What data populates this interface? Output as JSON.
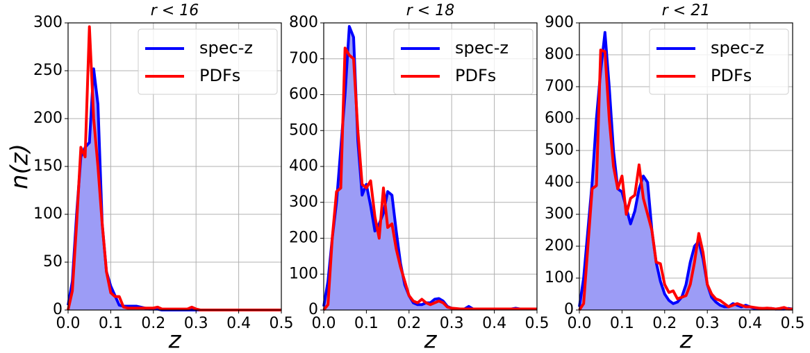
{
  "chart_data": [
    {
      "type": "line",
      "title": "r < 16",
      "xlabel": "z",
      "ylabel": "n(z)",
      "grid": true,
      "legend": "upper right",
      "x": [
        0,
        0.01,
        0.02,
        0.03,
        0.04,
        0.05,
        0.06,
        0.07,
        0.08,
        0.09,
        0.1,
        0.11,
        0.12,
        0.13,
        0.14,
        0.15,
        0.16,
        0.17,
        0.18,
        0.19,
        0.2,
        0.21,
        0.22,
        0.23,
        0.24,
        0.25,
        0.26,
        0.27,
        0.28,
        0.29,
        0.3,
        0.31,
        0.32,
        0.33,
        0.34,
        0.35,
        0.36,
        0.37,
        0.38,
        0.39,
        0.4,
        0.41,
        0.42,
        0.43,
        0.44,
        0.45,
        0.46,
        0.47,
        0.48,
        0.49,
        0.5
      ],
      "xlim": [
        0,
        0.5
      ],
      "xticks": [
        {
          "value": 0,
          "label": "0.0"
        },
        0.1,
        0.2,
        0.3,
        0.4,
        0.5
      ],
      "ylim": [
        0,
        300
      ],
      "yticks": [
        0,
        50,
        100,
        150,
        200,
        250,
        300
      ],
      "series": [
        {
          "name": "spec-z",
          "color": "#0000ff",
          "fill_color": "#9c9cf6",
          "values": [
            5,
            30,
            100,
            160,
            170,
            175,
            252,
            215,
            90,
            40,
            25,
            15,
            5,
            4,
            4,
            4,
            4,
            3,
            2,
            1,
            1,
            1,
            0,
            0,
            0,
            0,
            0,
            0,
            0,
            0,
            0,
            0,
            0,
            0,
            0,
            0,
            0,
            0,
            0,
            0,
            0,
            0,
            0,
            0,
            0,
            0,
            0,
            0,
            0,
            0,
            0
          ]
        },
        {
          "name": "PDFs",
          "color": "#ff0000",
          "values": [
            0,
            20,
            90,
            170,
            160,
            296,
            200,
            150,
            90,
            40,
            18,
            14,
            14,
            3,
            2,
            2,
            2,
            2,
            2,
            2,
            2,
            3,
            1,
            1,
            1,
            1,
            1,
            1,
            1,
            3,
            1,
            0,
            0,
            0,
            0,
            0,
            0,
            0,
            0,
            0,
            0,
            0,
            0,
            0,
            0,
            0,
            0,
            0,
            0,
            0,
            0
          ]
        }
      ]
    },
    {
      "type": "line",
      "title": "r < 18",
      "xlabel": "z",
      "grid": true,
      "legend": "upper right",
      "x": [
        0,
        0.01,
        0.02,
        0.03,
        0.04,
        0.05,
        0.06,
        0.07,
        0.08,
        0.09,
        0.1,
        0.11,
        0.12,
        0.13,
        0.14,
        0.15,
        0.16,
        0.17,
        0.18,
        0.19,
        0.2,
        0.21,
        0.22,
        0.23,
        0.24,
        0.25,
        0.26,
        0.27,
        0.28,
        0.29,
        0.3,
        0.31,
        0.32,
        0.33,
        0.34,
        0.35,
        0.36,
        0.37,
        0.38,
        0.39,
        0.4,
        0.41,
        0.42,
        0.43,
        0.44,
        0.45,
        0.46,
        0.47,
        0.48,
        0.49,
        0.5
      ],
      "xlim": [
        0,
        0.5
      ],
      "xticks": [
        {
          "value": 0,
          "label": "0.0"
        },
        0.1,
        0.2,
        0.3,
        0.4,
        0.5
      ],
      "ylim": [
        0,
        800
      ],
      "yticks": [
        0,
        100,
        200,
        300,
        400,
        500,
        600,
        700,
        800
      ],
      "series": [
        {
          "name": "spec-z",
          "color": "#0000ff",
          "fill_color": "#9c9cf6",
          "values": [
            10,
            80,
            200,
            300,
            450,
            600,
            790,
            760,
            470,
            320,
            350,
            290,
            220,
            240,
            270,
            330,
            320,
            220,
            130,
            70,
            40,
            20,
            15,
            15,
            20,
            20,
            30,
            32,
            25,
            10,
            5,
            3,
            3,
            3,
            10,
            3,
            3,
            3,
            3,
            3,
            3,
            3,
            3,
            3,
            3,
            5,
            3,
            3,
            3,
            3,
            3
          ]
        },
        {
          "name": "PDFs",
          "color": "#ff0000",
          "values": [
            0,
            15,
            200,
            330,
            340,
            730,
            710,
            700,
            500,
            350,
            340,
            360,
            260,
            200,
            340,
            230,
            240,
            170,
            120,
            80,
            40,
            25,
            20,
            30,
            20,
            15,
            20,
            25,
            20,
            8,
            5,
            4,
            3,
            3,
            3,
            3,
            3,
            3,
            3,
            3,
            3,
            3,
            3,
            3,
            3,
            3,
            3,
            3,
            3,
            3,
            3
          ]
        }
      ]
    },
    {
      "type": "line",
      "title": "r < 21",
      "xlabel": "z",
      "grid": true,
      "legend": "upper right",
      "x": [
        0,
        0.01,
        0.02,
        0.03,
        0.04,
        0.05,
        0.06,
        0.07,
        0.08,
        0.09,
        0.1,
        0.11,
        0.12,
        0.13,
        0.14,
        0.15,
        0.16,
        0.17,
        0.18,
        0.19,
        0.2,
        0.21,
        0.22,
        0.23,
        0.24,
        0.25,
        0.26,
        0.27,
        0.28,
        0.29,
        0.3,
        0.31,
        0.32,
        0.33,
        0.34,
        0.35,
        0.36,
        0.37,
        0.38,
        0.39,
        0.4,
        0.41,
        0.42,
        0.43,
        0.44,
        0.45,
        0.46,
        0.47,
        0.48,
        0.49,
        0.5
      ],
      "xlim": [
        0,
        0.5
      ],
      "xticks": [
        {
          "value": 0,
          "label": "0.0"
        },
        0.1,
        0.2,
        0.3,
        0.4,
        0.5
      ],
      "ylim": [
        0,
        900
      ],
      "yticks": [
        0,
        100,
        200,
        300,
        400,
        500,
        600,
        700,
        800,
        900
      ],
      "series": [
        {
          "name": "spec-z",
          "color": "#0000ff",
          "fill_color": "#9c9cf6",
          "values": [
            10,
            100,
            250,
            400,
            600,
            750,
            870,
            700,
            500,
            380,
            370,
            320,
            270,
            310,
            380,
            420,
            400,
            250,
            150,
            90,
            50,
            30,
            20,
            25,
            40,
            80,
            150,
            200,
            215,
            160,
            80,
            40,
            25,
            15,
            10,
            10,
            20,
            15,
            10,
            15,
            10,
            5,
            5,
            5,
            5,
            5,
            3,
            3,
            3,
            5,
            3
          ]
        },
        {
          "name": "PDFs",
          "color": "#ff0000",
          "values": [
            0,
            20,
            200,
            380,
            390,
            815,
            810,
            600,
            450,
            380,
            420,
            300,
            350,
            360,
            455,
            350,
            300,
            250,
            150,
            145,
            80,
            55,
            60,
            35,
            40,
            45,
            80,
            150,
            240,
            180,
            80,
            50,
            35,
            30,
            20,
            10,
            15,
            20,
            15,
            10,
            10,
            8,
            6,
            5,
            6,
            5,
            3,
            5,
            8,
            3,
            3
          ]
        }
      ]
    }
  ]
}
